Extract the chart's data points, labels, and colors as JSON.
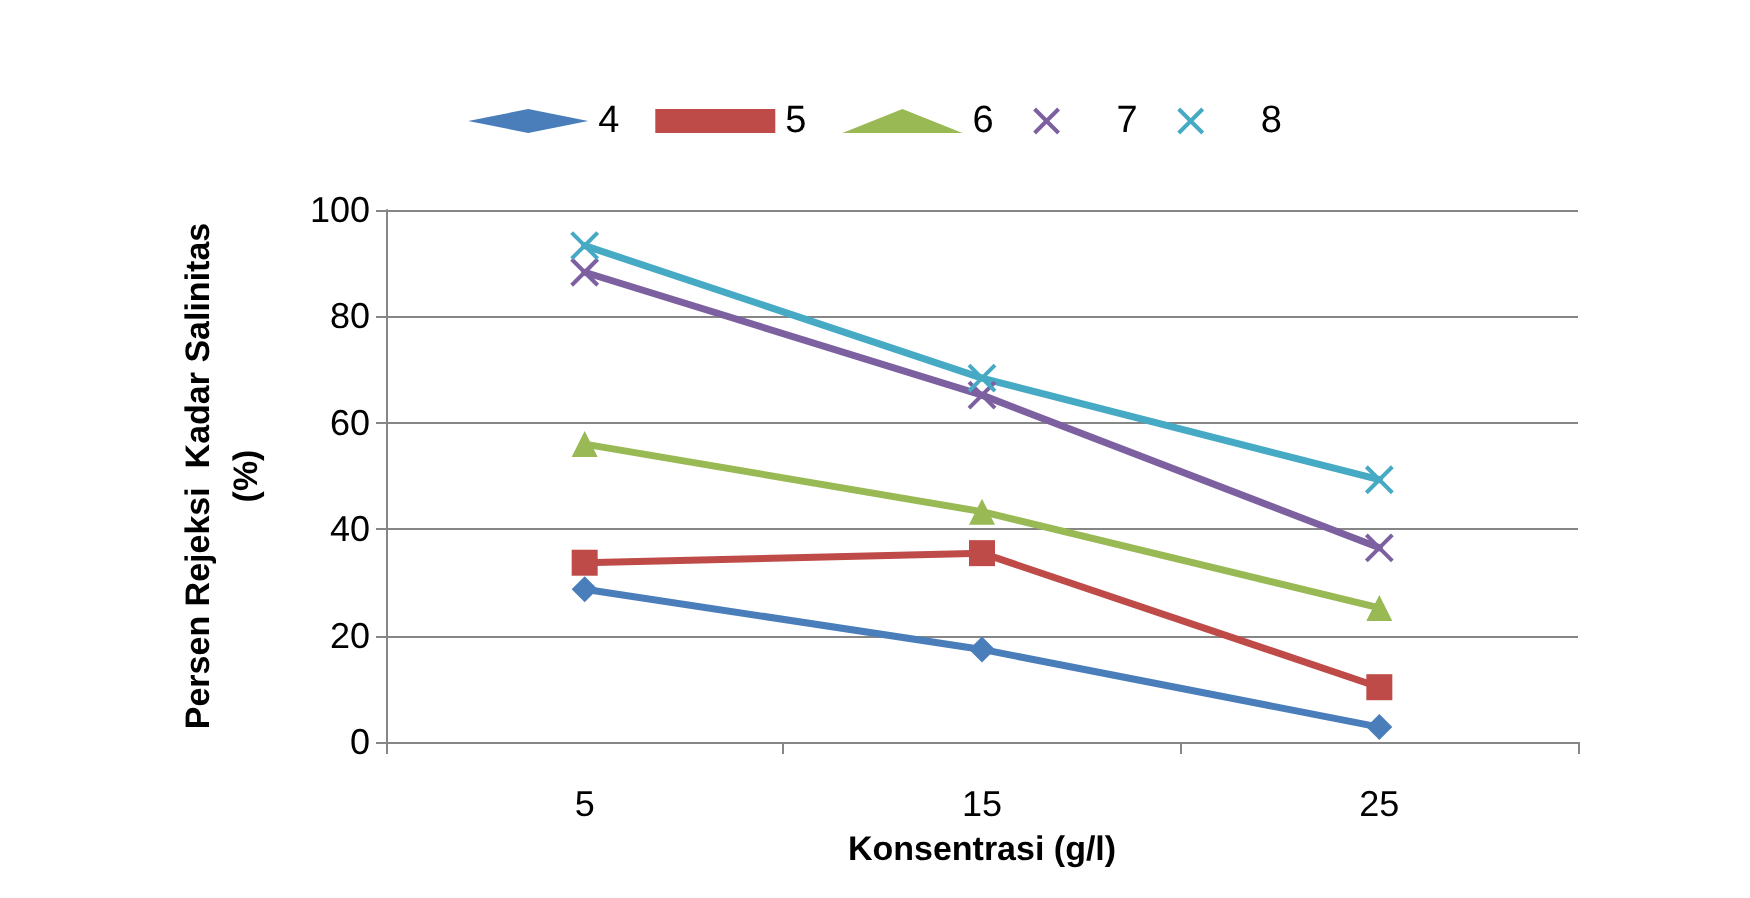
{
  "chart_data": {
    "type": "line",
    "xlabel": "Konsentrasi (g/l)",
    "ylabel": "Persen Rejeksi  Kadar Salinitas\n(%)",
    "categories": [
      "5",
      "15",
      "25"
    ],
    "series": [
      {
        "name": "4",
        "color": "#4a7ebb",
        "marker": "diamond",
        "values": [
          28.7,
          17.4,
          2.8
        ]
      },
      {
        "name": "5",
        "color": "#be4b48",
        "marker": "square",
        "values": [
          33.7,
          35.5,
          10.3
        ]
      },
      {
        "name": "6",
        "color": "#98b954",
        "marker": "triangle",
        "values": [
          56,
          43.3,
          25.2
        ]
      },
      {
        "name": "7",
        "color": "#7d60a0",
        "marker": "cross",
        "values": [
          88.3,
          65.2,
          36.5
        ]
      },
      {
        "name": "8",
        "color": "#46aac5",
        "marker": "cross",
        "values": [
          93.3,
          68.4,
          49.3
        ]
      }
    ],
    "ylim": [
      0,
      100
    ],
    "yticks": [
      0,
      20,
      40,
      60,
      80,
      100
    ],
    "grid": "y",
    "legend": "top",
    "line_style": "solid"
  }
}
